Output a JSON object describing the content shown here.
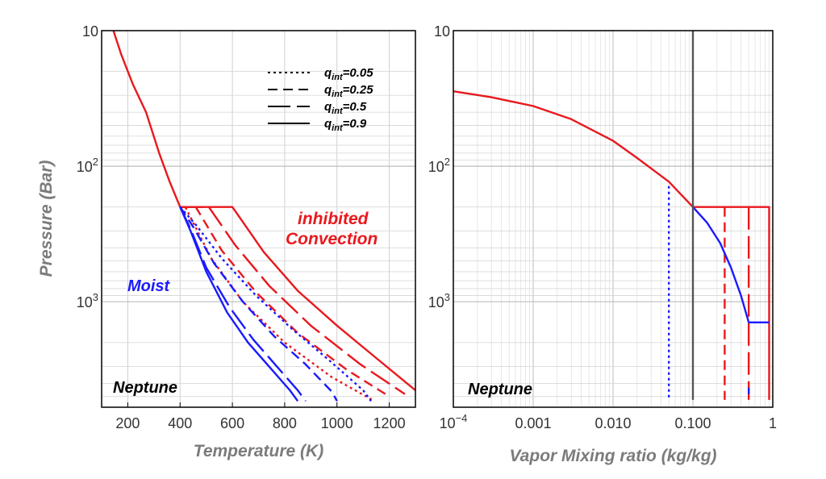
{
  "chart_data": [
    {
      "type": "line",
      "panel": "left",
      "xlabel": "Temperature (K)",
      "ylabel": "Pressure (Bar)",
      "xlim": [
        100,
        1300
      ],
      "ylim": [
        10,
        6000
      ],
      "y_scale": "log",
      "y_inverted": true,
      "grid": true,
      "x_ticks": [
        "200",
        "400",
        "600",
        "800",
        "1000",
        "1200"
      ],
      "y_ticks": [
        {
          "value": 10,
          "base": "10",
          "exp": ""
        },
        {
          "value": 100,
          "base": "10",
          "exp": "2"
        },
        {
          "value": 1000,
          "base": "10",
          "exp": "3"
        }
      ],
      "annotations": [
        {
          "text": "Neptune",
          "color": "#000000"
        },
        {
          "text": "Moist",
          "color": "#1a1aff"
        },
        {
          "text": "inhibited",
          "color": "#e8191e"
        },
        {
          "text": "Convection",
          "color": "#e8191e"
        }
      ],
      "legend": {
        "placement": "top-right",
        "entries": [
          {
            "base": "q",
            "sub": "int",
            "rest": "=0.05",
            "dash": "dotted"
          },
          {
            "base": "q",
            "sub": "int",
            "rest": "=0.25",
            "dash": "dashed"
          },
          {
            "base": "q",
            "sub": "int",
            "rest": "=0.5",
            "dash": "long-dashed"
          },
          {
            "base": "q",
            "sub": "int",
            "rest": "=0.9",
            "dash": "solid"
          }
        ]
      },
      "series": [
        {
          "color": "#e8191e",
          "dash": "solid",
          "x": [
            145,
            175,
            220,
            270,
            320,
            360,
            400
          ],
          "y": [
            10,
            15,
            25,
            40,
            80,
            130,
            200
          ]
        },
        {
          "color": "#e8191e",
          "dash": "dotted",
          "x": [
            400,
            420,
            420,
            520,
            640,
            800,
            980,
            1135
          ],
          "y": [
            200,
            200,
            200,
            480,
            1000,
            2000,
            3600,
            5300
          ]
        },
        {
          "color": "#e8191e",
          "dash": "dashed",
          "x": [
            400,
            460,
            460,
            560,
            690,
            850,
            1040,
            1200
          ],
          "y": [
            200,
            200,
            200,
            420,
            850,
            1700,
            3200,
            5000
          ]
        },
        {
          "color": "#e8191e",
          "dash": "long-dashed",
          "x": [
            400,
            510,
            510,
            610,
            740,
            900,
            1090,
            1260
          ],
          "y": [
            200,
            200,
            200,
            380,
            760,
            1500,
            2900,
            4800
          ]
        },
        {
          "color": "#e8191e",
          "dash": "solid",
          "x": [
            400,
            600,
            600,
            720,
            850,
            1000,
            1150,
            1300
          ],
          "y": [
            200,
            200,
            200,
            430,
            830,
            1500,
            2600,
            4500
          ]
        },
        {
          "color": "#1a1aff",
          "dash": "solid",
          "x": [
            400,
            440,
            500,
            580,
            660,
            740,
            820,
            850
          ],
          "y": [
            200,
            300,
            600,
            1200,
            2000,
            3000,
            4500,
            5400
          ]
        },
        {
          "color": "#1a1aff",
          "dash": "long-dashed",
          "x": [
            400,
            440,
            500,
            590,
            680,
            770,
            850,
            880
          ],
          "y": [
            200,
            290,
            560,
            1100,
            1900,
            3000,
            4500,
            5400
          ]
        },
        {
          "color": "#1a1aff",
          "dash": "dashed",
          "x": [
            400,
            450,
            530,
            640,
            760,
            880,
            980,
            1000
          ],
          "y": [
            200,
            280,
            520,
            1000,
            1800,
            2900,
            4600,
            5400
          ]
        },
        {
          "color": "#1a1aff",
          "dash": "dotted",
          "x": [
            400,
            460,
            560,
            690,
            830,
            970,
            1100,
            1130
          ],
          "y": [
            200,
            270,
            480,
            900,
            1600,
            2700,
            4500,
            5400
          ]
        }
      ]
    },
    {
      "type": "line",
      "panel": "right",
      "xlabel": "Vapor Mixing ratio (kg/kg)",
      "ylabel": "",
      "xlim": [
        0.0001,
        1
      ],
      "x_scale": "log",
      "ylim": [
        10,
        6000
      ],
      "y_scale": "log",
      "y_inverted": true,
      "grid": true,
      "x_ticks": [
        {
          "value": 0.0001,
          "base": "10",
          "exp": "−4"
        },
        {
          "value": 0.001,
          "base": "0.001",
          "exp": ""
        },
        {
          "value": 0.01,
          "base": "0.010",
          "exp": ""
        },
        {
          "value": 0.1,
          "base": "0.100",
          "exp": ""
        },
        {
          "value": 1,
          "base": "1",
          "exp": ""
        }
      ],
      "y_ticks": [
        {
          "value": 10,
          "base": "10",
          "exp": ""
        },
        {
          "value": 100,
          "base": "10",
          "exp": "2"
        },
        {
          "value": 1000,
          "base": "10",
          "exp": "3"
        }
      ],
      "annotations": [
        {
          "text": "Neptune",
          "color": "#000000"
        }
      ],
      "series": [
        {
          "color": "#e8191e",
          "dash": "solid",
          "x": [
            0.0001,
            0.0003,
            0.001,
            0.003,
            0.01,
            0.02,
            0.05,
            0.1
          ],
          "y": [
            28,
            31,
            36,
            45,
            65,
            87,
            130,
            200
          ]
        },
        {
          "color": "#e8191e",
          "dash": "solid",
          "x": [
            0.1,
            0.9,
            0.9,
            0.9
          ],
          "y": [
            200,
            200,
            2000,
            5300
          ]
        },
        {
          "color": "#e8191e",
          "dash": "dashed",
          "x": [
            0.25,
            0.25
          ],
          "y": [
            200,
            5300
          ]
        },
        {
          "color": "#e8191e",
          "dash": "long-dashed",
          "x": [
            0.5,
            0.5
          ],
          "y": [
            200,
            5300
          ]
        },
        {
          "color": "#1a1aff",
          "dash": "solid",
          "x": [
            0.1,
            0.15,
            0.22,
            0.3,
            0.4,
            0.5,
            0.5,
            0.9
          ],
          "y": [
            200,
            260,
            370,
            560,
            900,
            1420,
            1420,
            1420
          ]
        },
        {
          "color": "#1a1aff",
          "dash": "long-dashed",
          "x": [
            0.5,
            0.5
          ],
          "y": [
            4300,
            4800
          ]
        },
        {
          "color": "#1a1aff",
          "dash": "dotted",
          "x": [
            0.05,
            0.05
          ],
          "y": [
            140,
            5300
          ]
        },
        {
          "color": "#555555",
          "dash": "solid",
          "x": [
            0.1,
            0.1
          ],
          "y": [
            10,
            5300
          ]
        }
      ]
    }
  ]
}
